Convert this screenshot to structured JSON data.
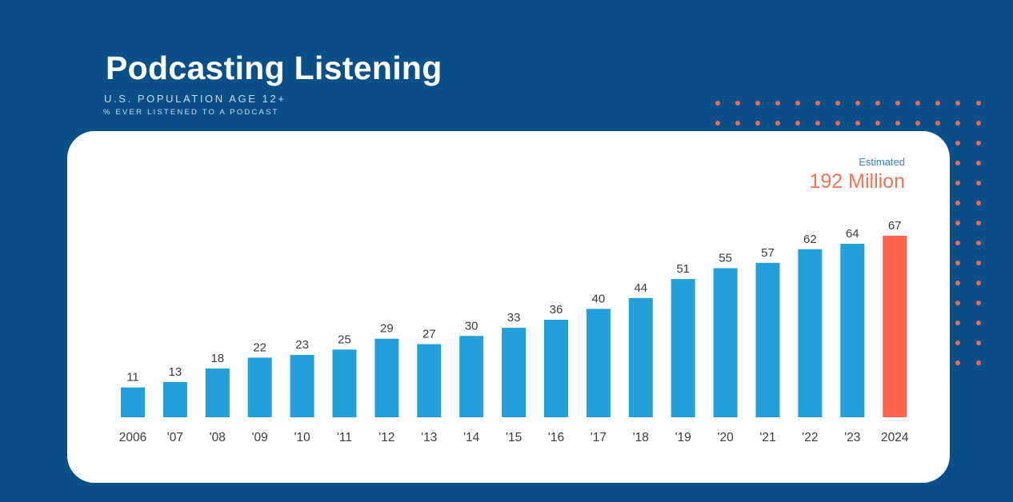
{
  "header": {
    "title": "Podcasting Listening",
    "subtitle": "U.S. POPULATION AGE 12+",
    "subtitle_secondary": "% EVER LISTENED TO A PODCAST"
  },
  "estimate": {
    "label": "Estimated",
    "value": "192 Million"
  },
  "colors": {
    "background": "#0b4f89",
    "bar": "#239fd9",
    "highlight_bar": "#fe644a",
    "dots": "#f26a4f",
    "estimate_label": "#3a86b8",
    "estimate_value": "#ef7555"
  },
  "chart_data": {
    "type": "bar",
    "title": "Podcasting Listening",
    "subtitle": "% EVER LISTENED TO A PODCAST",
    "categories": [
      "2006",
      "'07",
      "'08",
      "'09",
      "'10",
      "'11",
      "'12",
      "'13",
      "'14",
      "'15",
      "'16",
      "'17",
      "'18",
      "'19",
      "'20",
      "'21",
      "'22",
      "'23",
      "2024"
    ],
    "values": [
      11,
      13,
      18,
      22,
      23,
      25,
      29,
      27,
      30,
      33,
      36,
      40,
      44,
      51,
      55,
      57,
      62,
      64,
      67
    ],
    "highlight_category": "2024",
    "ylim": [
      0,
      67
    ],
    "grid": false,
    "legend": "none"
  }
}
